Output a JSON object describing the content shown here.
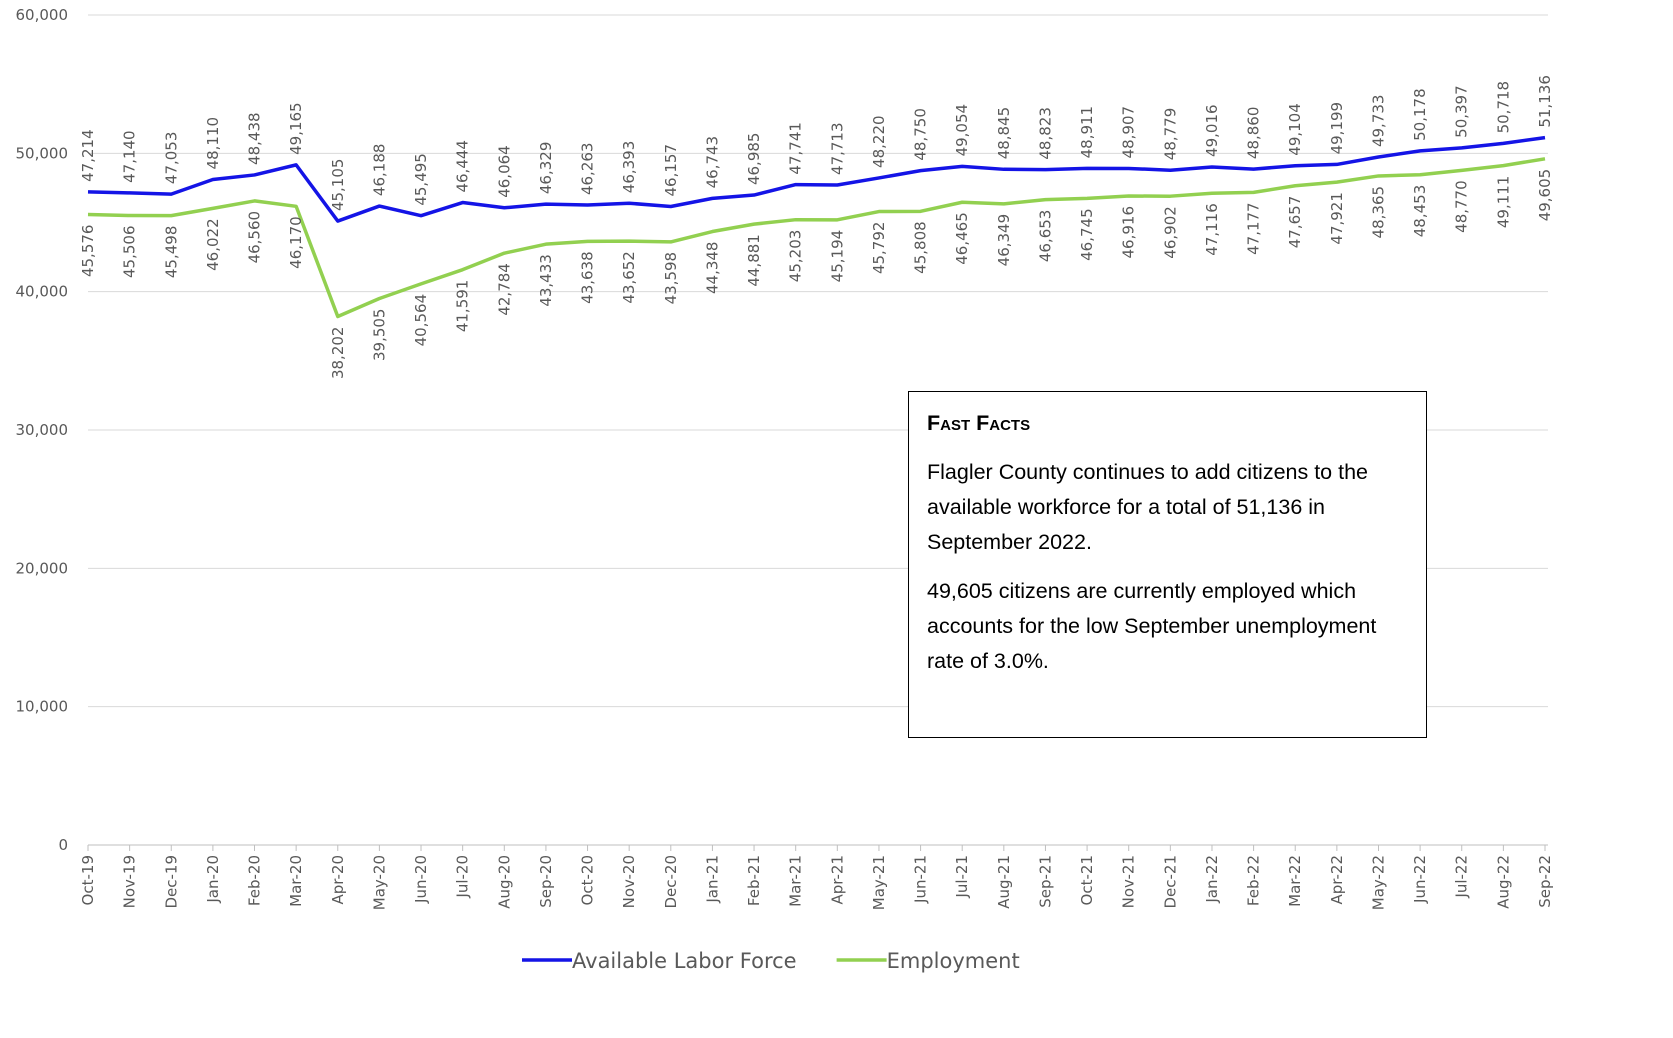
{
  "chart_data": {
    "type": "line",
    "categories": [
      "Oct-19",
      "Nov-19",
      "Dec-19",
      "Jan-20",
      "Feb-20",
      "Mar-20",
      "Apr-20",
      "May-20",
      "Jun-20",
      "Jul-20",
      "Aug-20",
      "Sep-20",
      "Oct-20",
      "Nov-20",
      "Dec-20",
      "Jan-21",
      "Feb-21",
      "Mar-21",
      "Apr-21",
      "May-21",
      "Jun-21",
      "Jul-21",
      "Aug-21",
      "Sep-21",
      "Oct-21",
      "Nov-21",
      "Dec-21",
      "Jan-22",
      "Feb-22",
      "Mar-22",
      "Apr-22",
      "May-22",
      "Jun-22",
      "Jul-22",
      "Aug-22",
      "Sep-22"
    ],
    "series": [
      {
        "name": "Available Labor Force",
        "color": "#1414e6",
        "label_side": "above",
        "values": [
          47214,
          47140,
          47053,
          48110,
          48438,
          49165,
          45105,
          46188,
          45495,
          46444,
          46064,
          46329,
          46263,
          46393,
          46157,
          46743,
          46985,
          47741,
          47713,
          48220,
          48750,
          49054,
          48845,
          48823,
          48911,
          48907,
          48779,
          49016,
          48860,
          49104,
          49199,
          49733,
          50178,
          50397,
          50718,
          51136
        ],
        "value_labels": [
          "47,214",
          "47,140",
          "47,053",
          "48,110",
          "48,438",
          "49,165",
          "45,105",
          "46,188",
          "45,495",
          "46,444",
          "46,064",
          "46,329",
          "46,263",
          "46,393",
          "46,157",
          "46,743",
          "46,985",
          "47,741",
          "47,713",
          "48,220",
          "48,750",
          "49,054",
          "48,845",
          "48,823",
          "48,911",
          "48,907",
          "48,779",
          "49,016",
          "48,860",
          "49,104",
          "49,199",
          "49,733",
          "50,178",
          "50,397",
          "50,718",
          "51,136"
        ]
      },
      {
        "name": "Employment",
        "color": "#92d050",
        "label_side": "below",
        "values": [
          45576,
          45506,
          45498,
          46022,
          46560,
          46170,
          38202,
          39505,
          40564,
          41591,
          42784,
          43433,
          43638,
          43652,
          43598,
          44348,
          44881,
          45203,
          45194,
          45792,
          45808,
          46465,
          46349,
          46653,
          46745,
          46916,
          46902,
          47116,
          47177,
          47657,
          47921,
          48365,
          48453,
          48770,
          49111,
          49605
        ],
        "value_labels": [
          "45,576",
          "45,506",
          "45,498",
          "46,022",
          "46,560",
          "46,170",
          "38,202",
          "39,505",
          "40,564",
          "41,591",
          "42,784",
          "43,433",
          "43,638",
          "43,652",
          "43,598",
          "44,348",
          "44,881",
          "45,203",
          "45,194",
          "45,792",
          "45,808",
          "46,465",
          "46,349",
          "46,653",
          "46,745",
          "46,916",
          "46,902",
          "47,116",
          "47,177",
          "47,657",
          "47,921",
          "48,365",
          "48,453",
          "48,770",
          "49,111",
          "49,605"
        ]
      }
    ],
    "ylim": [
      0,
      60000
    ],
    "yticks": [
      0,
      {
        "value": 10000,
        "label": "10,000"
      },
      {
        "value": 20000,
        "label": "20,000"
      },
      {
        "value": 30000,
        "label": "30,000"
      },
      {
        "value": 40000,
        "label": "40,000"
      },
      {
        "value": 50000,
        "label": "50,000"
      },
      {
        "value": 60000,
        "label": "60,000"
      }
    ],
    "grid": true,
    "legend": "bottom",
    "annotation": {
      "title": "Fast Facts",
      "paragraphs": [
        "Flagler County continues to add citizens to the available workforce for a total of 51,136 in September 2022.",
        "49,605 citizens are currently employed which accounts for the low September unemployment rate of 3.0%."
      ]
    }
  }
}
